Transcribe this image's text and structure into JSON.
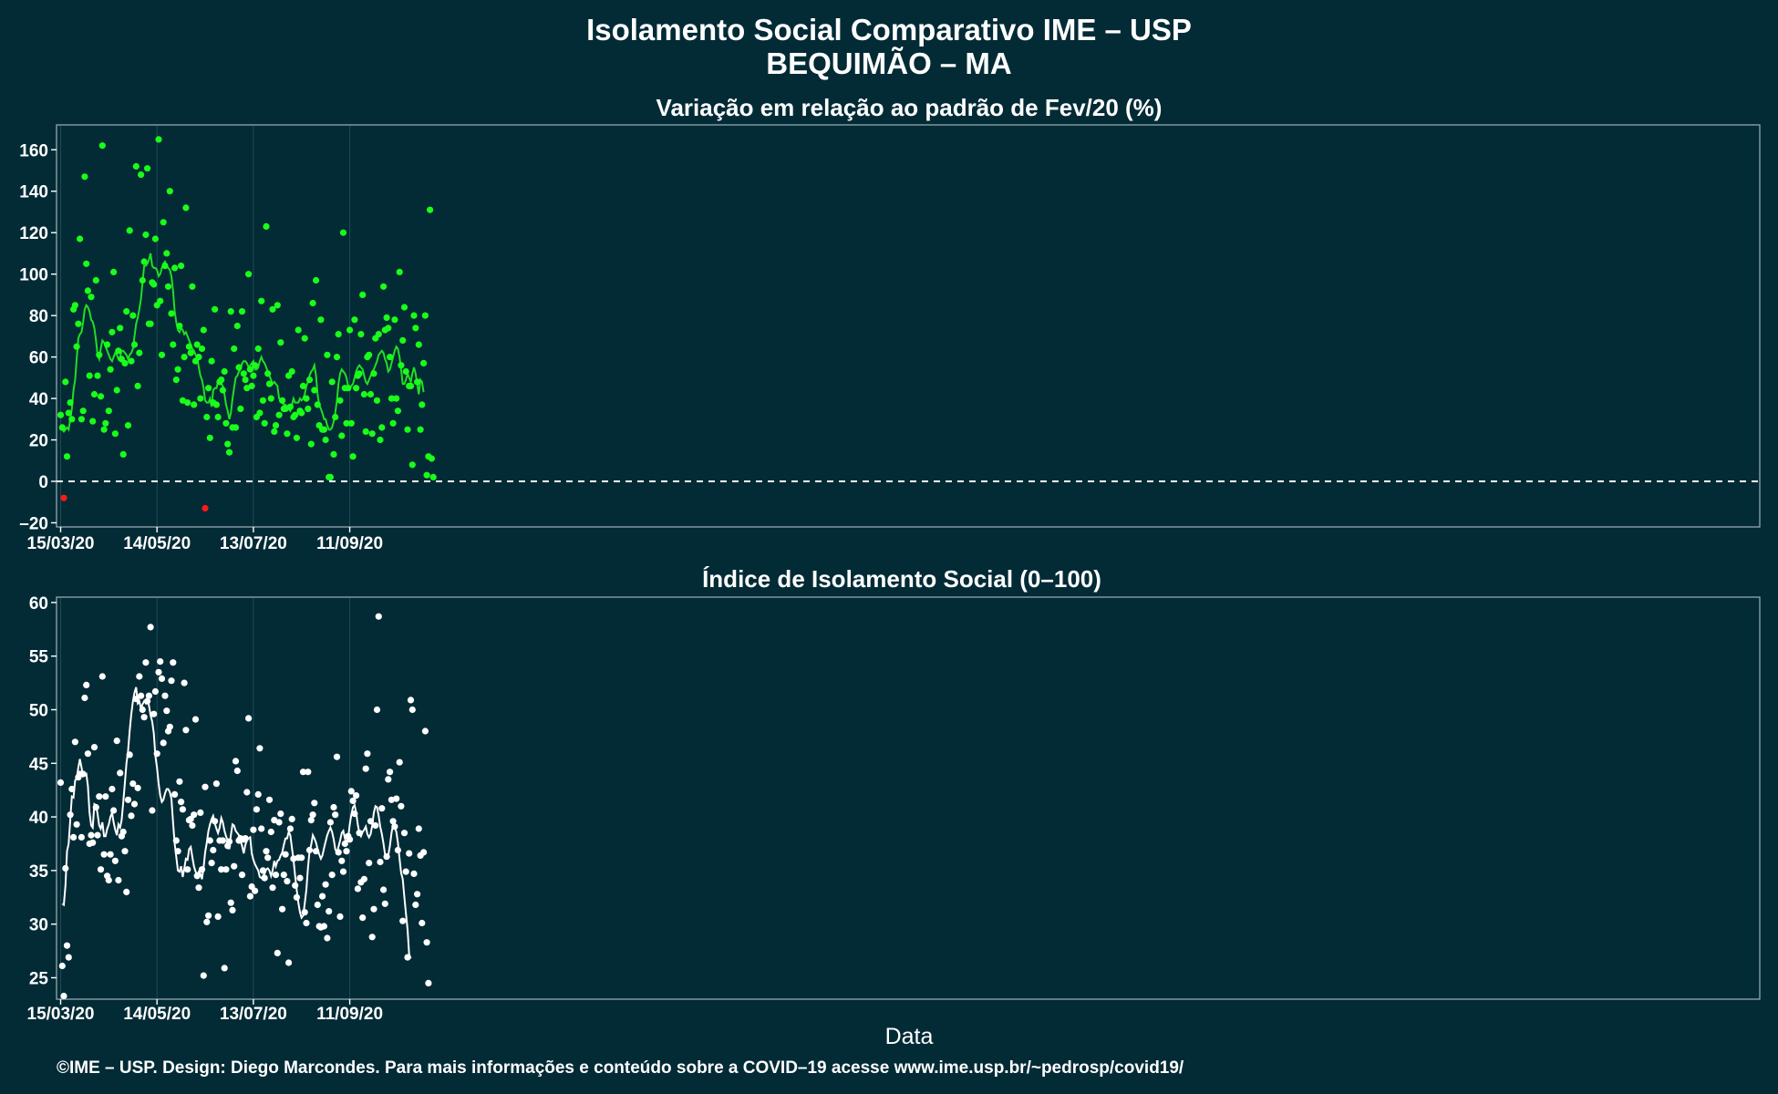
{
  "figure": {
    "title_line1": "Isolamento Social Comparativo IME – USP",
    "title_line2": "BEQUIMÃO – MA",
    "xlabel": "Data",
    "footer": "©IME – USP. Design: Diego Marcondes. Para mais informações e conteúdo sobre a COVID–19 acesse www.ime.usp.br/~pedrosp/covid19/"
  },
  "colors": {
    "background": "#022b36",
    "panel1_points": "#19ff19",
    "panel1_negative_points": "#ff1a1a",
    "panel1_line": "#22dd22",
    "panel2_points": "#ffffff",
    "panel2_line": "#ffffff",
    "reference_line": "#ffffff"
  },
  "chart_data": [
    {
      "type": "scatter",
      "title": "Variação em relação ao padrão de Fev/20 (%)",
      "x_tick_labels": [
        "15/03/20",
        "14/05/20",
        "13/07/20",
        "11/09/20"
      ],
      "x_tick_days": [
        0,
        60,
        120,
        180
      ],
      "ylim": [
        -22,
        172
      ],
      "y_ticks": [
        -20,
        0,
        20,
        40,
        60,
        80,
        100,
        120,
        140,
        160
      ],
      "reference_line_y": 0,
      "grid": true,
      "series": [
        {
          "kind": "points",
          "values": [
            32,
            26,
            -8,
            48,
            12,
            33,
            38,
            30,
            83,
            85,
            65,
            76,
            117,
            30,
            34,
            147,
            105,
            92,
            51,
            89,
            29,
            42,
            97,
            51,
            61,
            41,
            162,
            25,
            28,
            66,
            34,
            54,
            72,
            101,
            23,
            44,
            63,
            74,
            59,
            13,
            57,
            82,
            27,
            121,
            58,
            80,
            66,
            152,
            46,
            62,
            148,
            97,
            106,
            119,
            151,
            76,
            76,
            96,
            95,
            117,
            85,
            165,
            87,
            61,
            125,
            104,
            110,
            94,
            140,
            81,
            66,
            103,
            49,
            54,
            75,
            104,
            39,
            60,
            132,
            38,
            65,
            62,
            94,
            37,
            58,
            66,
            60,
            40,
            64,
            73,
            -13,
            31,
            45,
            21,
            58,
            38,
            83,
            37,
            31,
            48,
            49,
            44,
            53,
            28,
            18,
            14,
            82,
            26,
            64,
            26,
            75,
            55,
            35,
            82,
            52,
            49,
            45,
            100,
            54,
            46,
            51,
            56,
            31,
            64,
            33,
            87,
            39,
            28,
            123,
            52,
            47,
            40,
            83,
            24,
            27,
            85,
            32,
            67,
            39,
            35,
            35,
            23,
            51,
            36,
            53,
            31,
            32,
            21,
            73,
            34,
            33,
            46,
            69,
            40,
            35,
            49,
            18,
            86,
            44,
            97,
            37,
            27,
            78,
            25,
            25,
            20,
            61,
            2,
            2,
            48,
            13,
            31,
            60,
            71,
            39,
            22,
            120,
            45,
            28,
            45,
            73,
            28,
            12,
            78,
            45,
            51,
            52,
            71,
            90,
            42,
            24,
            60,
            61,
            42,
            23,
            52,
            69,
            39,
            71,
            20,
            26,
            94,
            73,
            79,
            74,
            60,
            40,
            28,
            78,
            40,
            34,
            101,
            56,
            68,
            84,
            53,
            25,
            46,
            46,
            8,
            80,
            74,
            48,
            66,
            25,
            37,
            57,
            80,
            3,
            12,
            131,
            11,
            2
          ]
        },
        {
          "kind": "rolling_mean",
          "values": [
            25,
            24,
            25,
            26,
            25,
            30,
            35,
            44,
            49,
            59,
            69,
            71,
            72,
            77,
            83,
            85,
            84,
            82,
            78,
            77,
            74,
            68,
            61,
            59,
            64,
            68,
            67,
            65,
            63,
            61,
            59,
            58,
            60,
            62,
            61,
            59,
            60,
            63,
            63,
            62,
            61,
            59,
            61,
            62,
            64,
            70,
            76,
            79,
            83,
            88,
            96,
            104,
            104,
            105,
            107,
            110,
            104,
            103,
            103,
            102,
            99,
            100,
            103,
            105,
            106,
            104,
            103,
            102,
            99,
            92,
            82,
            77,
            73,
            72,
            74,
            73,
            71,
            72,
            70,
            68,
            66,
            64,
            63,
            61,
            60,
            55,
            51,
            49,
            45,
            39,
            38,
            38,
            40,
            36,
            44,
            45,
            45,
            48,
            48,
            47,
            46,
            42,
            37,
            34,
            30,
            33,
            40,
            45,
            50,
            51,
            53,
            54,
            57,
            58,
            58,
            57,
            55,
            56,
            57,
            58,
            54,
            54,
            55,
            58,
            60,
            58,
            57,
            55,
            53,
            51,
            49,
            47,
            48,
            47,
            46,
            40,
            39,
            38,
            37,
            37,
            36,
            35,
            34,
            37,
            40,
            38,
            38,
            38,
            40,
            39,
            40,
            42,
            46,
            48,
            51,
            53,
            54,
            56,
            51,
            42,
            37,
            35,
            33,
            30,
            30,
            27,
            25,
            25,
            26,
            29,
            33,
            39,
            47,
            52,
            54,
            53,
            52,
            50,
            46,
            45,
            46,
            47,
            50,
            53,
            55,
            56,
            55,
            54,
            51,
            48,
            47,
            49,
            51,
            53,
            54,
            56,
            58,
            61,
            62,
            63,
            62,
            59,
            57,
            53,
            54,
            57,
            60,
            63,
            65,
            64,
            60,
            54,
            47,
            47,
            49,
            52,
            50,
            48,
            52,
            55,
            52,
            47,
            42,
            49,
            48,
            43
          ]
        }
      ]
    },
    {
      "type": "scatter",
      "title": "Índice de Isolamento Social (0–100)",
      "x_tick_labels": [
        "15/03/20",
        "14/05/20",
        "13/07/20",
        "11/09/20"
      ],
      "x_tick_days": [
        0,
        60,
        120,
        180
      ],
      "ylim": [
        23,
        60.5
      ],
      "y_ticks": [
        25,
        30,
        35,
        40,
        45,
        50,
        55,
        60
      ],
      "grid": true,
      "series": [
        {
          "kind": "points",
          "values": [
            43.2,
            26.1,
            23.3,
            35.2,
            28.0,
            26.9,
            40.2,
            42.6,
            38.1,
            47.0,
            39.3,
            43.7,
            44.0,
            38.1,
            44.0,
            51.1,
            52.3,
            45.9,
            37.5,
            38.3,
            37.6,
            46.5,
            40.9,
            38.3,
            41.9,
            35.1,
            53.1,
            36.5,
            41.9,
            34.5,
            34.1,
            36.5,
            42.6,
            40.6,
            35.9,
            47.1,
            34.1,
            44.1,
            38.2,
            38.6,
            36.8,
            33.0,
            41.6,
            45.8,
            40.1,
            43.1,
            41.2,
            51.0,
            42.7,
            53.1,
            51.3,
            50.0,
            49.3,
            54.4,
            50.8,
            51.3,
            57.7,
            40.6,
            49.6,
            51.7,
            45.9,
            53.5,
            54.5,
            52.9,
            46.9,
            51.3,
            49.9,
            48.0,
            48.4,
            52.7,
            54.4,
            42.1,
            37.8,
            36.8,
            43.3,
            41.4,
            40.7,
            52.5,
            48.1,
            35.1,
            39.7,
            39.8,
            39.2,
            40.2,
            49.1,
            34.5,
            33.4,
            40.4,
            35.1,
            25.2,
            42.8,
            30.2,
            30.8,
            37.8,
            35.7,
            36.9,
            39.6,
            43.1,
            30.7,
            37.8,
            35.1,
            37.8,
            25.9,
            35.1,
            37.3,
            37.7,
            32.0,
            31.3,
            35.4,
            45.2,
            44.3,
            37.8,
            38.0,
            34.6,
            37.9,
            38.0,
            42.3,
            49.2,
            32.6,
            33.5,
            38.8,
            33.1,
            40.7,
            42.1,
            46.4,
            38.9,
            35.0,
            34.3,
            36.8,
            36.2,
            41.6,
            38.6,
            33.4,
            39.7,
            34.6,
            27.3,
            39.5,
            40.3,
            31.4,
            34.6,
            36.5,
            34.0,
            26.4,
            38.9,
            39.8,
            36.1,
            33.6,
            32.5,
            36.2,
            34.3,
            36.2,
            44.2,
            31.1,
            30.1,
            44.2,
            36.9,
            39.7,
            40.2,
            41.3,
            36.8,
            31.8,
            29.8,
            29.7,
            32.6,
            29.8,
            33.7,
            28.7,
            31.2,
            39.5,
            34.6,
            40.9,
            40.2,
            45.6,
            36.7,
            30.7,
            35.9,
            34.9,
            37.5,
            36.8,
            38.2,
            37.9,
            42.4,
            41.5,
            40.3,
            42.0,
            33.3,
            38.5,
            33.9,
            30.6,
            34.2,
            44.5,
            45.9,
            35.7,
            39.6,
            28.8,
            31.4,
            39.2,
            50.0,
            58.7,
            35.8,
            40.8,
            33.2,
            31.9,
            36.3,
            43.5,
            44.2,
            41.6,
            39.6,
            39.1,
            41.7,
            36.9,
            45.1,
            41.0,
            30.3,
            38.5,
            34.9,
            26.9,
            36.6,
            50.9,
            50.0,
            34.7,
            31.8,
            32.8,
            38.9,
            36.4,
            30.1,
            36.7,
            48.0,
            28.3,
            24.5
          ]
        },
        {
          "kind": "rolling_mean",
          "values": [
            31.9,
            31.8,
            33.6,
            36.8,
            37.5,
            39.8,
            41.9,
            41.8,
            43.4,
            43.6,
            44.6,
            45.4,
            44.6,
            43.8,
            43.9,
            44.0,
            42.9,
            40.4,
            39.2,
            39.0,
            41.2,
            41.1,
            40.3,
            39.2,
            38.9,
            39.5,
            38.2,
            38.2,
            38.9,
            39.3,
            40.0,
            40.4,
            39.5,
            38.8,
            38.3,
            39.3,
            39.0,
            39.7,
            41.4,
            43.2,
            45.0,
            46.2,
            48.0,
            49.6,
            50.8,
            51.6,
            52.1,
            50.6,
            50.8,
            50.1,
            50.5,
            50.8,
            50.6,
            51.0,
            50.4,
            49.5,
            48.9,
            47.8,
            45.7,
            44.6,
            43.1,
            42.0,
            41.4,
            41.6,
            42.2,
            42.6,
            42.6,
            42.3,
            41.7,
            39.5,
            37.5,
            36.3,
            35.0,
            34.9,
            35.4,
            34.4,
            35.2,
            36.1,
            36.0,
            37.0,
            37.2,
            36.3,
            35.4,
            34.9,
            34.6,
            34.9,
            34.7,
            34.2,
            35.3,
            36.7,
            37.6,
            38.7,
            39.3,
            39.8,
            40.1,
            39.4,
            38.9,
            38.5,
            39.0,
            39.9,
            39.5,
            38.7,
            38.2,
            37.8,
            37.0,
            38.3,
            39.3,
            39.2,
            38.7,
            38.5,
            38.3,
            37.8,
            37.3,
            36.6,
            37.4,
            37.8,
            38.0,
            38.1,
            36.6,
            36.0,
            35.6,
            35.3,
            35.0,
            34.4,
            34.3,
            34.5,
            34.7,
            35.1,
            35.2,
            35.0,
            34.5,
            35.0,
            35.9,
            35.4,
            35.9,
            36.0,
            36.4,
            36.7,
            37.4,
            38.0,
            38.0,
            38.6,
            38.3,
            37.1,
            36.0,
            34.5,
            33.2,
            32.0,
            31.1,
            30.6,
            30.8,
            31.9,
            33.2,
            35.3,
            36.8,
            37.4,
            38.3,
            38.0,
            37.6,
            37.0,
            36.5,
            36.1,
            36.4,
            37.1,
            37.7,
            38.3,
            38.7,
            39.0,
            38.6,
            37.9,
            37.0,
            36.7,
            37.2,
            37.8,
            38.5,
            38.7,
            38.0,
            37.5,
            38.0,
            39.3,
            40.2,
            40.9,
            41.1,
            40.4,
            39.3,
            38.5,
            38.2,
            38.6,
            38.8,
            39.1,
            38.4,
            38.1,
            38.4,
            39.2,
            40.4,
            41.0,
            40.9,
            40.1,
            39.1,
            38.4,
            37.5,
            36.5,
            36.2,
            36.4,
            37.3,
            38.5,
            39.3,
            39.0,
            38.6,
            37.6,
            36.1,
            34.8,
            34.2,
            32.5,
            31.0,
            29.5,
            27.2,
            26.8
          ]
        }
      ]
    }
  ]
}
